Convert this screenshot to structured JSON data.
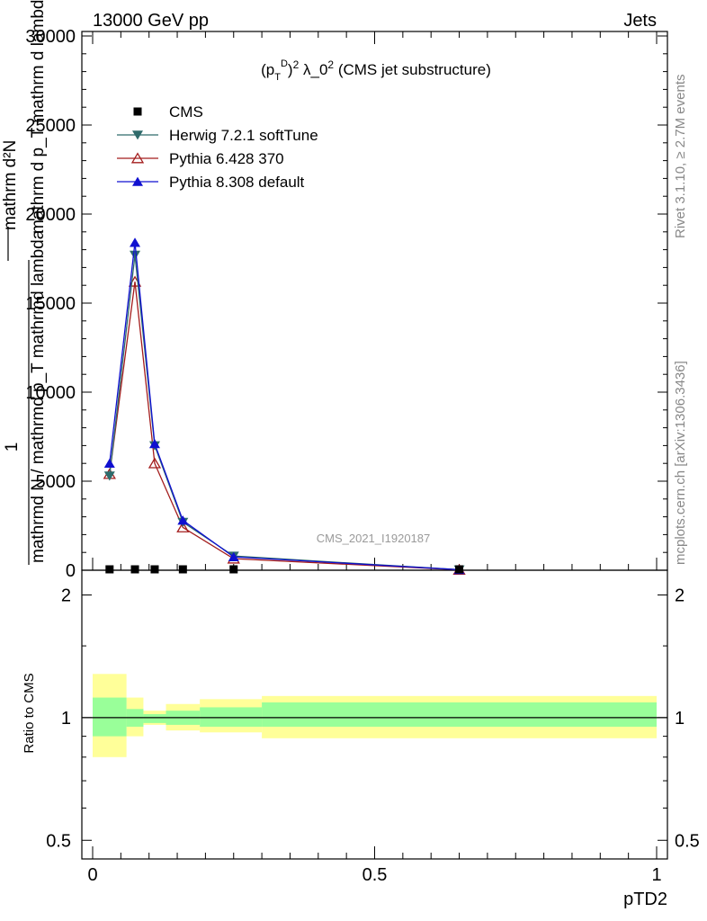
{
  "header": {
    "left": "13000 GeV pp",
    "right": "Jets"
  },
  "side_labels": {
    "rivet": "Rivet 3.1.10, ≥ 2.7M events",
    "mcplots": "mcplots.cern.ch [arXiv:1306.3436]"
  },
  "watermark": "CMS_2021_I1920187",
  "upper_panel": {
    "title_text": "(p_T^D)^2 λ_0^2 (CMS jet substructure)",
    "ylabel_numerator": "mathrm d²N",
    "ylabel_numerator_line2": "mathrm d p_T mathrm d lambda",
    "ylabel_prefix": "1",
    "ylabel_denominator": "mathrmd N / mathrmd p_T mathrmd lambda",
    "y_ticks": [
      "0",
      "5000",
      "10000",
      "15000",
      "20000",
      "25000",
      "30000"
    ]
  },
  "lower_panel": {
    "ylabel": "Ratio to CMS",
    "y_ticks": [
      "0.5",
      "1",
      "2"
    ],
    "x_ticks": [
      "0",
      "0.5",
      "1"
    ],
    "xlabel": "pTD2"
  },
  "legend": [
    {
      "label": "CMS",
      "marker": "square",
      "color": "#000000"
    },
    {
      "label": "Herwig 7.2.1 softTune",
      "marker": "triangle-down",
      "color": "#2f6b6b"
    },
    {
      "label": "Pythia 6.428 370",
      "marker": "triangle-open",
      "color": "#a31c1c"
    },
    {
      "label": "Pythia 8.308 default",
      "marker": "triangle-up",
      "color": "#1010d0"
    }
  ],
  "chart_data": {
    "type": "line",
    "title": "(p_T^D)^2 λ_0^2 (CMS jet substructure)",
    "xlabel": "pTD2",
    "ylabel": "1 / mathrmd N / mathrmd p_T mathrmd lambda · mathrm d²N / mathrm d p_T mathrm d lambda",
    "xlim": [
      0,
      1
    ],
    "ylim": [
      0,
      30000
    ],
    "ratio_ylim": [
      0.45,
      2.3
    ],
    "ratio_scale": "log",
    "x": [
      0.03,
      0.075,
      0.11,
      0.16,
      0.25,
      0.65
    ],
    "series": [
      {
        "name": "CMS",
        "values": [
          5,
          5,
          5,
          5,
          5,
          5
        ]
      },
      {
        "name": "Herwig 7.2.1 softTune",
        "values": [
          5300,
          17700,
          7000,
          2700,
          800,
          30
        ]
      },
      {
        "name": "Pythia 6.428 370",
        "values": [
          5400,
          16200,
          6000,
          2400,
          650,
          25
        ]
      },
      {
        "name": "Pythia 8.308 default",
        "values": [
          6000,
          18400,
          7100,
          2800,
          750,
          30
        ]
      }
    ],
    "ratio_bands": {
      "bin_edges": [
        0,
        0.06,
        0.09,
        0.13,
        0.19,
        0.3,
        1.0
      ],
      "stat_low": [
        0.9,
        0.95,
        0.97,
        0.96,
        0.95,
        0.95
      ],
      "stat_high": [
        1.12,
        1.05,
        1.02,
        1.04,
        1.06,
        1.09
      ],
      "total_low": [
        0.8,
        0.9,
        0.96,
        0.93,
        0.92,
        0.89
      ],
      "total_high": [
        1.28,
        1.12,
        1.04,
        1.08,
        1.11,
        1.13
      ]
    }
  }
}
